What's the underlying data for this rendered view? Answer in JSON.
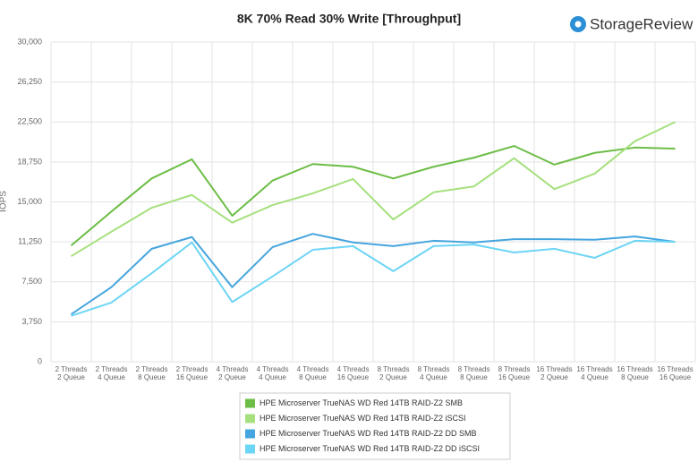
{
  "brand": "StorageReview",
  "chart_data": {
    "type": "line",
    "title": "8K 70% Read 30% Write [Throughput]",
    "y_label": "IOPS",
    "categories": [
      [
        "2 Threads",
        "2 Queue"
      ],
      [
        "2 Threads",
        "4 Queue"
      ],
      [
        "2 Threads",
        "8 Queue"
      ],
      [
        "2 Threads",
        "16 Queue"
      ],
      [
        "4 Threads",
        "2 Queue"
      ],
      [
        "4 Threads",
        "4 Queue"
      ],
      [
        "4 Threads",
        "8 Queue"
      ],
      [
        "4 Threads",
        "16 Queue"
      ],
      [
        "8 Threads",
        "2 Queue"
      ],
      [
        "8 Threads",
        "4 Queue"
      ],
      [
        "8 Threads",
        "8 Queue"
      ],
      [
        "8 Threads",
        "16 Queue"
      ],
      [
        "16 Threads",
        "2 Queue"
      ],
      [
        "16 Threads",
        "4 Queue"
      ],
      [
        "16 Threads",
        "8 Queue"
      ],
      [
        "16 Threads",
        "16 Queue"
      ]
    ],
    "series": [
      {
        "name": "HPE Microserver TrueNAS WD Red 14TB RAID-Z2 SMB",
        "color": "#6cbd45",
        "values": [
          10900,
          14100,
          17200,
          19000,
          13700,
          17000,
          18550,
          18300,
          17200,
          18300,
          19150,
          20250,
          18500,
          19600,
          20100,
          20000
        ]
      },
      {
        "name": "HPE Microserver TrueNAS WD Red 14TB RAID-Z2 iSCSI",
        "color": "#a6e07e",
        "values": [
          9900,
          12200,
          14450,
          15650,
          13050,
          14700,
          15800,
          17150,
          13350,
          15900,
          16450,
          19100,
          16200,
          17650,
          20700,
          22500
        ]
      },
      {
        "name": "HPE Microserver TrueNAS WD Red 14TB RAID-Z2 DD SMB",
        "color": "#45a5de",
        "values": [
          4450,
          7000,
          10600,
          11700,
          7000,
          10750,
          12000,
          11200,
          10850,
          11350,
          11200,
          11500,
          11500,
          11450,
          11750,
          11250
        ]
      },
      {
        "name": "HPE Microserver TrueNAS WD Red 14TB RAID-Z2 DD iSCSI",
        "color": "#6dd5f5",
        "values": [
          4300,
          5550,
          8300,
          11200,
          5600,
          8000,
          10500,
          10850,
          8500,
          10850,
          11000,
          10250,
          10600,
          9750,
          11350,
          11250
        ]
      }
    ],
    "ylim": [
      0,
      30000
    ],
    "yticks": [
      0,
      {
        "value": 3750,
        "label": "3,750"
      },
      {
        "value": 7500,
        "label": "7,500"
      },
      {
        "value": 11250,
        "label": "11,250"
      },
      {
        "value": 15000,
        "label": "15,000"
      },
      {
        "value": 18750,
        "label": "18,750"
      },
      {
        "value": 22500,
        "label": "22,500"
      },
      {
        "value": 26250,
        "label": "26,250"
      },
      {
        "value": 30000,
        "label": "30,000"
      }
    ],
    "grid": true,
    "legend": "bottom"
  }
}
